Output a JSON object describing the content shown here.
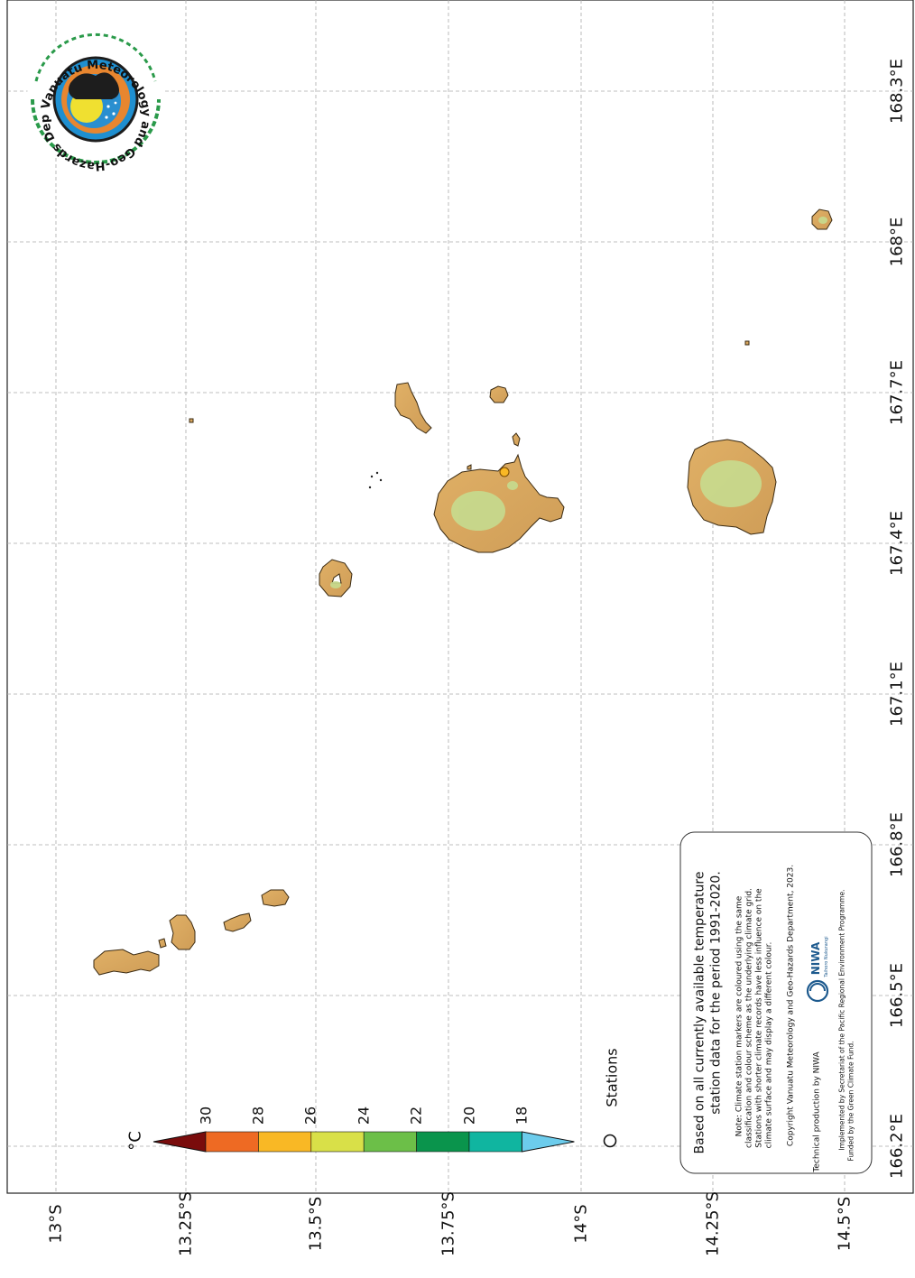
{
  "map": {
    "lat_ticks": [
      "13°S",
      "13.25°S",
      "13.5°S",
      "13.75°S",
      "14°S",
      "14.25°S",
      "14.5°S"
    ],
    "lon_ticks": [
      "166.2°E",
      "166.5°E",
      "166.8°E",
      "167.1°E",
      "167.4°E",
      "167.7°E",
      "168°E",
      "168.3°E"
    ],
    "land_color": "#d9a860",
    "highland_color": "#c6dc8f",
    "station_color": "#f9b825"
  },
  "legend": {
    "unit": "°C",
    "colorbar_labels": [
      "30",
      "28",
      "26",
      "24",
      "22",
      "20",
      "18"
    ],
    "colorbar_colors": [
      "#7a0c0c",
      "#ee6a23",
      "#f9b825",
      "#d9e048",
      "#6cbf48",
      "#0a944c",
      "#10b5a0",
      "#6cccec"
    ],
    "stations_label": "Stations"
  },
  "info": {
    "line1": "Based on all currently available temperature",
    "line2": "station data for the period 1991-2020.",
    "note1": "Note: Climate station markers are coloured using the same",
    "note2": "classification and colour scheme as the underlying climate grid.",
    "note3": "Stations with shorter climate records have less influence on the",
    "note4": "climate surface and may display a different colour.",
    "copyright": "Copyright Vanuatu Meteorology and Geo-Hazards Department, 2023.",
    "technical": "Technical production by NIWA",
    "niwa": "NIWA",
    "niwa_sub": "Taihoro Nukurangi",
    "impl1": "Implemented by Secretariat of the Pacific Regional Environment Programme.",
    "impl2": "Funded by the Green Climate Fund."
  },
  "logo": {
    "text": "Vanuatu Meteorology and Geo-Hazards Department"
  }
}
